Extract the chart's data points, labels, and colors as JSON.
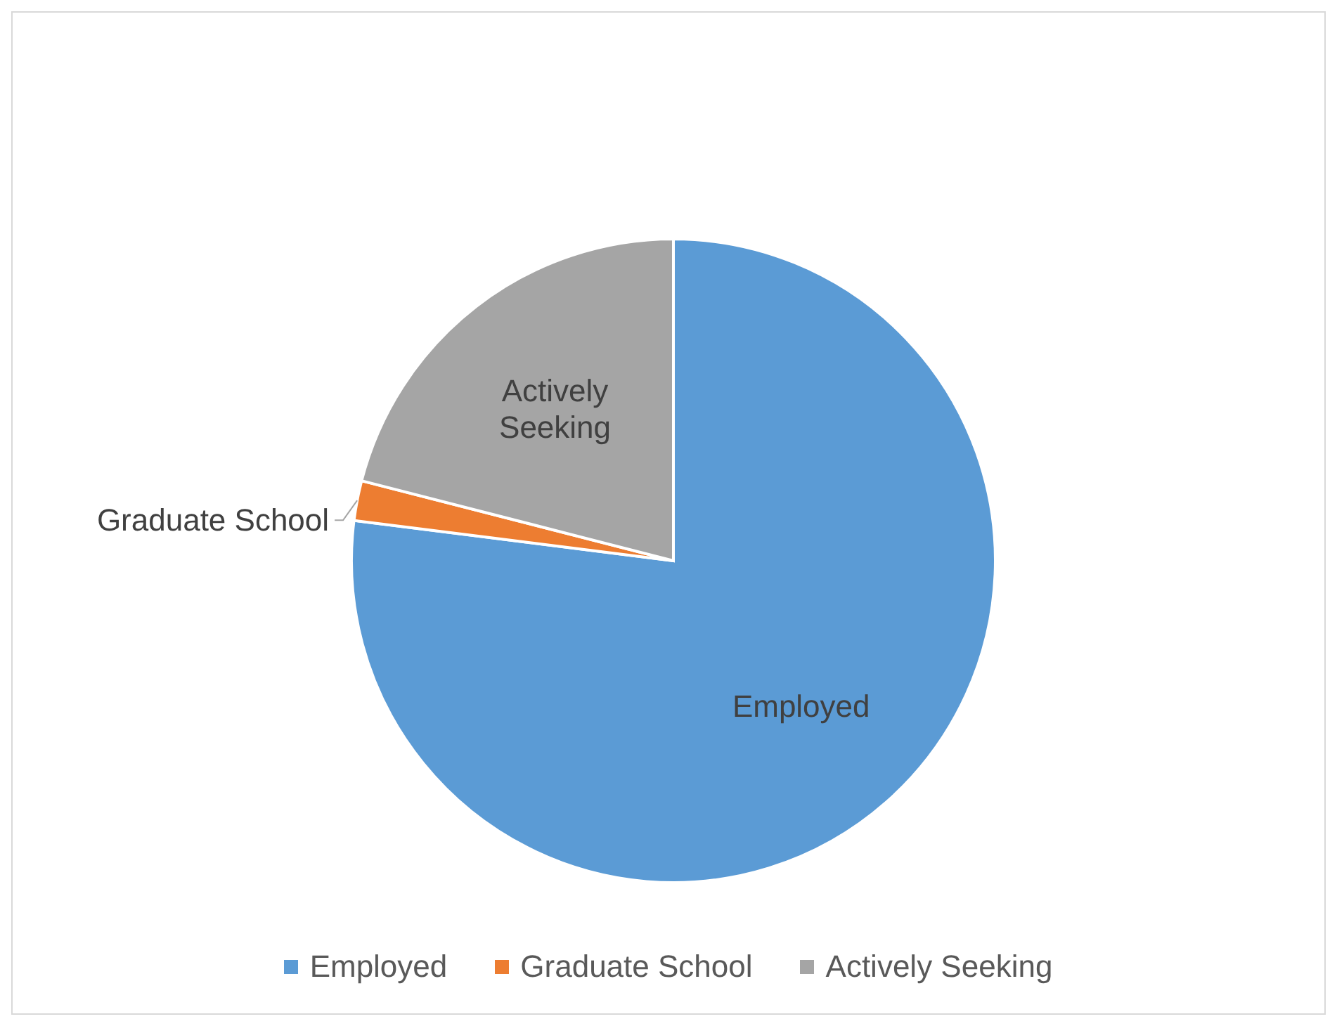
{
  "chart_data": {
    "type": "pie",
    "categories": [
      "Employed",
      "Graduate School",
      "Actively Seeking"
    ],
    "values": [
      77,
      2,
      21
    ],
    "colors": [
      "#5b9bd5",
      "#ed7d31",
      "#a5a5a5"
    ],
    "legend": "bottom"
  }
}
